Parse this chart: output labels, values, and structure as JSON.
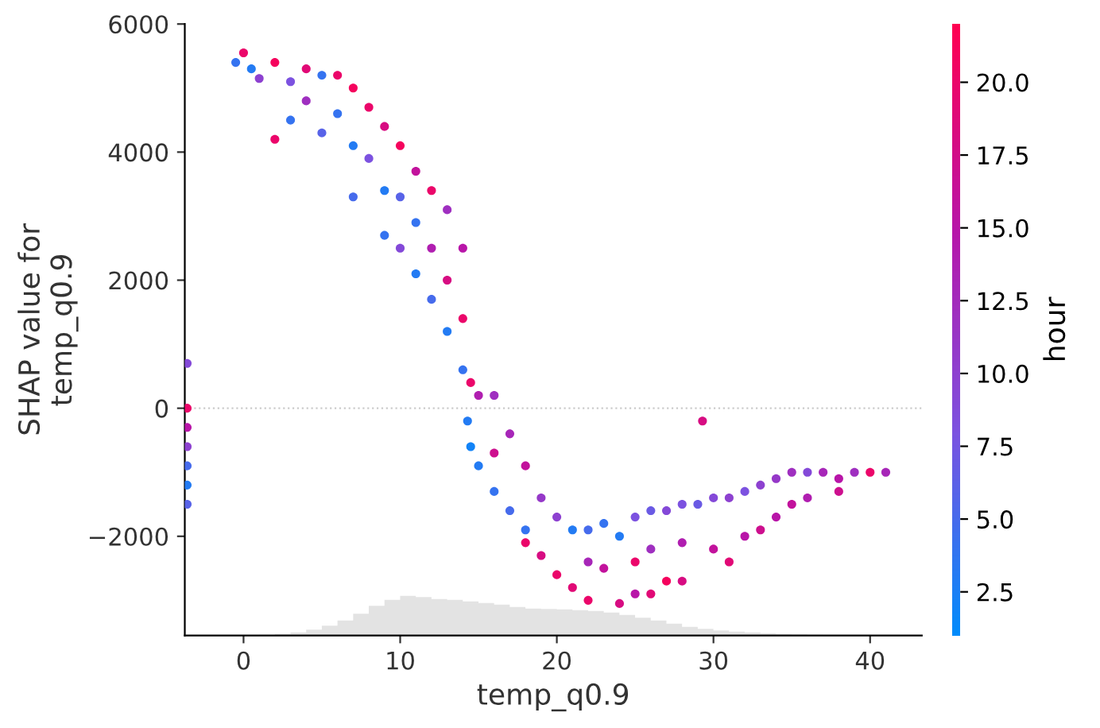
{
  "chart_data": {
    "type": "scatter",
    "xlabel": "temp_q0.9",
    "ylabel": "SHAP value for\ntemp_q0.9",
    "clabel": "hour",
    "xlim": [
      -3.75,
      43.3
    ],
    "ylim": [
      -3550,
      6000
    ],
    "xticks": [
      0,
      10,
      20,
      30,
      40
    ],
    "yticks": [
      {
        "value": -2000,
        "label": "−2000"
      },
      0,
      2000,
      4000,
      6000
    ],
    "clim": [
      1,
      22
    ],
    "cticks": [
      {
        "value": 2.5,
        "label": "2.5"
      },
      {
        "value": 5,
        "label": "5.0"
      },
      {
        "value": 7.5,
        "label": "7.5"
      },
      {
        "value": 10,
        "label": "10.0"
      },
      {
        "value": 12.5,
        "label": "12.5"
      },
      {
        "value": 15,
        "label": "15.0"
      },
      {
        "value": 17.5,
        "label": "17.5"
      },
      {
        "value": 20,
        "label": "20.0"
      }
    ],
    "grid": false,
    "marker": "circle",
    "ref_lines": [
      {
        "axis": "y",
        "value": 0,
        "color": "#cccccc",
        "line_style": "dotted"
      }
    ],
    "x": [
      -3.6,
      -3.6,
      -3.6,
      -3.6,
      -3.6,
      -3.6,
      -3.6,
      -0.5,
      0,
      0.5,
      1,
      2,
      2,
      3,
      3,
      4,
      4,
      5,
      5,
      6,
      6,
      7,
      7,
      7,
      8,
      8,
      9,
      9,
      9,
      10,
      10,
      10,
      11,
      11,
      11,
      12,
      12,
      12,
      13,
      13,
      13,
      14,
      14,
      14,
      14.3,
      14.5,
      14.5,
      15,
      15,
      16,
      16,
      16,
      17,
      17,
      18,
      18,
      18,
      19,
      19,
      20,
      20,
      21,
      21,
      22,
      22,
      22,
      23,
      23,
      24,
      24,
      25,
      25,
      25,
      26,
      26,
      26,
      27,
      27,
      28,
      28,
      28,
      29.3,
      29,
      30,
      30,
      31,
      31,
      32,
      32,
      33,
      33,
      34,
      34,
      35,
      35,
      36,
      36,
      37,
      38,
      38,
      39,
      40,
      41
    ],
    "values": [
      700,
      0,
      -300,
      -600,
      -900,
      -1200,
      -1500,
      5400,
      5550,
      5300,
      5150,
      5400,
      4200,
      5100,
      4500,
      5300,
      4800,
      5200,
      4300,
      5200,
      4600,
      5000,
      4100,
      3300,
      4700,
      3900,
      4400,
      3400,
      2700,
      4100,
      3300,
      2500,
      3700,
      2900,
      2100,
      3400,
      2500,
      1700,
      3100,
      2000,
      1200,
      2500,
      1400,
      600,
      -200,
      400,
      -600,
      200,
      -900,
      200,
      -700,
      -1300,
      -400,
      -1600,
      -900,
      -1900,
      -2100,
      -1400,
      -2300,
      -1700,
      -2600,
      -1900,
      -2800,
      -1900,
      -2400,
      -3000,
      -1800,
      -2500,
      -2000,
      -3050,
      -1700,
      -2400,
      -2900,
      -1600,
      -2200,
      -2900,
      -1600,
      -2700,
      -1500,
      -2100,
      -2700,
      -200,
      -1500,
      -1400,
      -2200,
      -1400,
      -2400,
      -1300,
      -2000,
      -1200,
      -1900,
      -1100,
      -1700,
      -1000,
      -1500,
      -1000,
      -1400,
      -1000,
      -1100,
      -1300,
      -1000,
      -1000,
      -1000
    ],
    "cvalues": [
      9,
      20,
      15,
      10,
      5,
      3,
      6,
      4,
      20,
      3,
      10,
      21,
      20,
      8,
      4,
      19,
      12,
      4,
      6,
      20,
      4,
      21,
      3,
      5,
      20,
      8,
      18,
      3,
      4,
      21,
      6,
      9,
      16,
      4,
      3,
      20,
      14,
      5,
      12,
      18,
      3,
      15,
      20,
      4,
      3,
      20,
      2,
      14,
      3,
      12,
      17,
      4,
      13,
      5,
      16,
      4,
      20,
      11,
      18,
      10,
      20,
      3,
      19,
      5,
      13,
      20,
      4,
      16,
      3,
      18,
      8,
      20,
      15,
      7,
      12,
      19,
      9,
      21,
      8,
      14,
      18,
      18,
      7,
      9,
      16,
      10,
      19,
      8,
      15,
      10,
      17,
      11,
      15,
      12,
      16,
      9,
      14,
      13,
      15,
      17,
      12,
      20,
      13
    ]
  }
}
